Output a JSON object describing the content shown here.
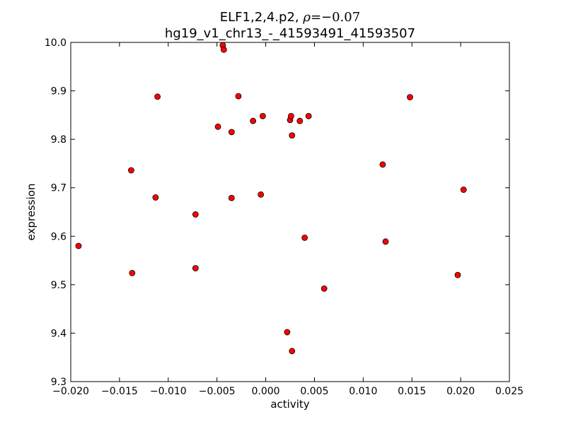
{
  "chart_data": {
    "type": "scatter",
    "title_line1_prefix": "ELF1,2,4.p2, ",
    "title_rho_symbol": "ρ",
    "title_rho_value": "=−0.07",
    "title_line2": "hg19_v1_chr13_-_41593491_41593507",
    "xlabel": "activity",
    "ylabel": "expression",
    "xlim": [
      -0.02,
      0.025
    ],
    "ylim": [
      9.3,
      10.0
    ],
    "x_ticks": [
      -0.02,
      -0.015,
      -0.01,
      -0.005,
      0.0,
      0.005,
      0.01,
      0.015,
      0.02,
      0.025
    ],
    "x_tick_labels": [
      "−0.020",
      "−0.015",
      "−0.010",
      "−0.005",
      "0.000",
      "0.005",
      "0.010",
      "0.015",
      "0.020",
      "0.025"
    ],
    "y_ticks": [
      9.3,
      9.4,
      9.5,
      9.6,
      9.7,
      9.8,
      9.9,
      10.0
    ],
    "y_tick_labels": [
      "9.3",
      "9.4",
      "9.5",
      "9.6",
      "9.7",
      "9.8",
      "9.9",
      "10.0"
    ],
    "grid": false,
    "marker_color": "#ff0000",
    "marker_edge_color": "#000000",
    "points": [
      {
        "x": -0.0192,
        "y": 9.58
      },
      {
        "x": -0.0137,
        "y": 9.524
      },
      {
        "x": -0.0138,
        "y": 9.736
      },
      {
        "x": -0.0113,
        "y": 9.68
      },
      {
        "x": -0.0111,
        "y": 9.888
      },
      {
        "x": -0.0072,
        "y": 9.645
      },
      {
        "x": -0.0072,
        "y": 9.534
      },
      {
        "x": -0.0049,
        "y": 9.826
      },
      {
        "x": -0.0044,
        "y": 9.994
      },
      {
        "x": -0.0043,
        "y": 9.985
      },
      {
        "x": -0.0035,
        "y": 9.815
      },
      {
        "x": -0.0035,
        "y": 9.679
      },
      {
        "x": -0.0028,
        "y": 9.889
      },
      {
        "x": -0.0013,
        "y": 9.838
      },
      {
        "x": -0.0005,
        "y": 9.686
      },
      {
        "x": -0.0003,
        "y": 9.848
      },
      {
        "x": 0.0022,
        "y": 9.402
      },
      {
        "x": 0.0025,
        "y": 9.84
      },
      {
        "x": 0.0026,
        "y": 9.848
      },
      {
        "x": 0.0027,
        "y": 9.808
      },
      {
        "x": 0.0027,
        "y": 9.363
      },
      {
        "x": 0.0035,
        "y": 9.838
      },
      {
        "x": 0.004,
        "y": 9.597
      },
      {
        "x": 0.0044,
        "y": 9.848
      },
      {
        "x": 0.006,
        "y": 9.492
      },
      {
        "x": 0.012,
        "y": 9.748
      },
      {
        "x": 0.0123,
        "y": 9.589
      },
      {
        "x": 0.0148,
        "y": 9.887
      },
      {
        "x": 0.0197,
        "y": 9.52
      },
      {
        "x": 0.0203,
        "y": 9.696
      }
    ]
  }
}
